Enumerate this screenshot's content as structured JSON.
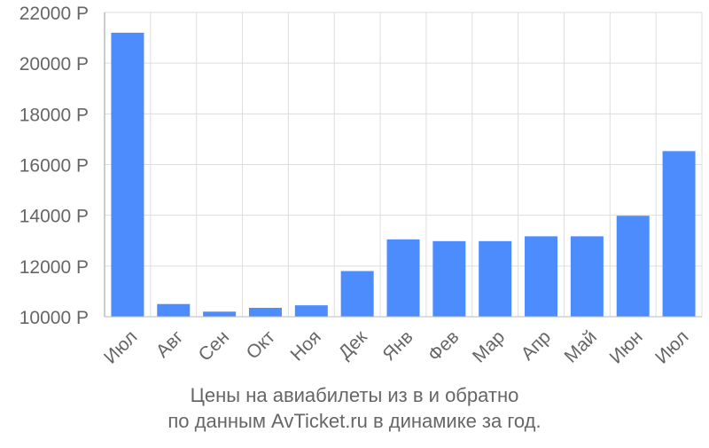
{
  "chart_data": {
    "type": "bar",
    "categories": [
      "Июл",
      "Авг",
      "Сен",
      "Окт",
      "Ноя",
      "Дек",
      "Янв",
      "Фев",
      "Мар",
      "Апр",
      "Май",
      "Июн",
      "Июл"
    ],
    "values": [
      21200,
      10500,
      10200,
      10350,
      10450,
      11800,
      13050,
      12980,
      12980,
      13170,
      13170,
      13980,
      16530
    ],
    "ylim": [
      10000,
      22000
    ],
    "yticks": [
      10000,
      12000,
      14000,
      16000,
      18000,
      20000,
      22000
    ],
    "ytick_suffix": " Р",
    "bar_color": "#4d8cfd",
    "grid": true,
    "xlabel": "",
    "ylabel": ""
  },
  "caption": {
    "line1": "Цены на авиабилеты из  в  и обратно",
    "line2": "по данным AvTicket.ru в динамике за год."
  }
}
